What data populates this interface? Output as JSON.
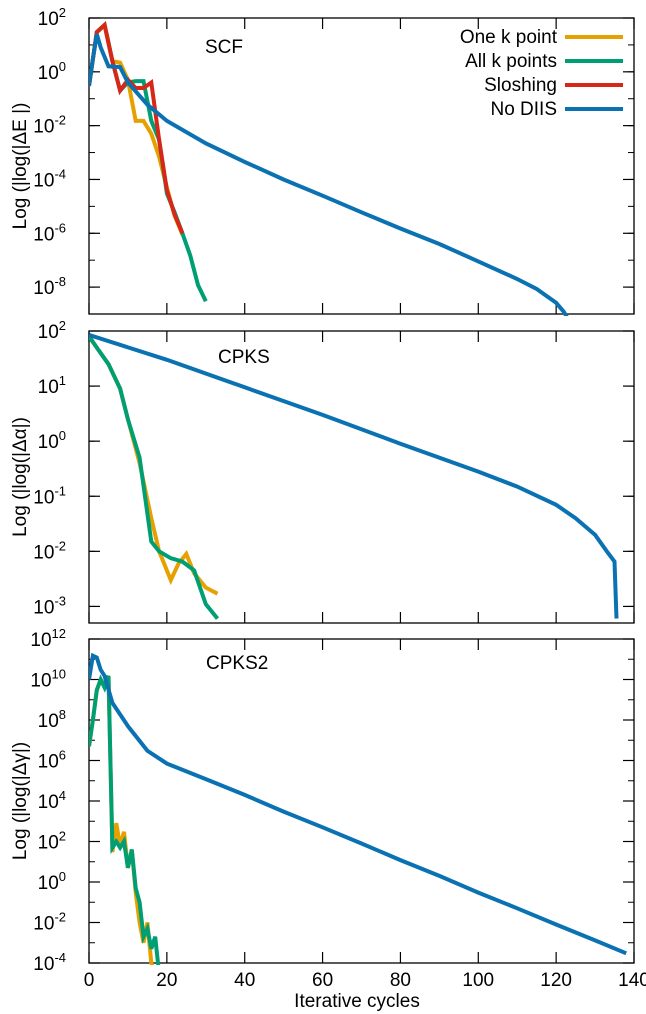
{
  "colors": {
    "one_k": "#e6a100",
    "all_k": "#009e73",
    "sloshing": "#d62718",
    "no_diis": "#0a72b2"
  },
  "legend": [
    {
      "label": "One k point",
      "key": "one_k"
    },
    {
      "label": "All k points",
      "key": "all_k"
    },
    {
      "label": "Sloshing",
      "key": "sloshing"
    },
    {
      "label": "No DIIS",
      "key": "no_diis"
    }
  ],
  "x_axis": {
    "label": "Iterative cycles",
    "ticks": [
      "0",
      "20",
      "40",
      "60",
      "80",
      "100",
      "120",
      "140"
    ]
  },
  "chart_data": [
    {
      "type": "line",
      "title": "SCF",
      "ylabel": "Log (|log(|ΔE |)",
      "yscale": "log",
      "ylim": [
        1e-09,
        100
      ],
      "xlim": [
        0,
        140
      ],
      "yticks": [
        {
          "base": "10",
          "exp": "2",
          "value": 100
        },
        {
          "base": "10",
          "exp": "0",
          "value": 1
        },
        {
          "base": "10",
          "exp": "-2",
          "value": 0.01
        },
        {
          "base": "10",
          "exp": "-4",
          "value": 0.0001
        },
        {
          "base": "10",
          "exp": "-6",
          "value": 1e-06
        },
        {
          "base": "10",
          "exp": "-8",
          "value": 1e-08
        }
      ],
      "series": [
        {
          "name": "One k point",
          "key": "one_k",
          "x": [
            0,
            2,
            4,
            6,
            8,
            10,
            12,
            14,
            16,
            18,
            20,
            22,
            24
          ],
          "y": [
            0.3,
            30,
            55,
            2.5,
            2.2,
            0.5,
            0.015,
            0.015,
            0.005,
            0.0007,
            5e-05,
            4.5e-06,
            9e-07
          ]
        },
        {
          "name": "All k points",
          "key": "all_k",
          "x": [
            0,
            2,
            4,
            6,
            8,
            10,
            12,
            14,
            16,
            18,
            20,
            22,
            24,
            26,
            28,
            30
          ],
          "y": [
            0.3,
            30,
            55,
            2.5,
            0.2,
            0.4,
            0.45,
            0.45,
            0.015,
            0.003,
            3e-05,
            6e-06,
            1e-06,
            1.5e-07,
            1.2e-08,
            3e-09
          ]
        },
        {
          "name": "Sloshing",
          "key": "sloshing",
          "x": [
            0,
            2,
            4,
            6,
            8,
            10,
            12,
            14,
            16,
            18,
            20,
            22,
            24
          ],
          "y": [
            0.3,
            30,
            55,
            2.5,
            0.2,
            0.5,
            0.25,
            0.25,
            0.4,
            0.003,
            4e-05,
            5e-06,
            1e-06
          ]
        },
        {
          "name": "No DIIS",
          "key": "no_diis",
          "x": [
            0,
            1,
            2,
            3,
            5,
            8,
            10,
            15,
            20,
            30,
            40,
            50,
            60,
            70,
            80,
            90,
            100,
            110,
            115,
            120,
            122,
            123.5
          ],
          "y": [
            0.3,
            3,
            25,
            8,
            1.6,
            1.5,
            0.4,
            0.06,
            0.015,
            0.0022,
            0.00045,
            0.0001,
            2.5e-05,
            6e-06,
            1.5e-06,
            4e-07,
            9e-08,
            2e-08,
            8.5e-09,
            2.6e-09,
            1.2e-09,
            5e-10
          ]
        }
      ]
    },
    {
      "type": "line",
      "title": "CPKS",
      "ylabel": "Log (|log(|Δα|)",
      "yscale": "log",
      "ylim": [
        0.0005,
        100
      ],
      "xlim": [
        0,
        140
      ],
      "yticks": [
        {
          "base": "10",
          "exp": "2",
          "value": 100
        },
        {
          "base": "10",
          "exp": "1",
          "value": 10
        },
        {
          "base": "10",
          "exp": "0",
          "value": 1
        },
        {
          "base": "10",
          "exp": "-1",
          "value": 0.1
        },
        {
          "base": "10",
          "exp": "-2",
          "value": 0.01
        },
        {
          "base": "10",
          "exp": "-3",
          "value": 0.001
        }
      ],
      "series": [
        {
          "name": "One k point",
          "key": "one_k",
          "x": [
            0,
            2,
            5,
            8,
            10,
            13,
            16,
            18,
            21,
            23,
            25,
            27,
            30,
            33
          ],
          "y": [
            80,
            50,
            25,
            9,
            2.5,
            0.4,
            0.04,
            0.01,
            0.003,
            0.006,
            0.009,
            0.004,
            0.0022,
            0.0017
          ]
        },
        {
          "name": "All k points",
          "key": "all_k",
          "x": [
            0,
            2,
            5,
            8,
            10,
            13,
            16,
            18,
            21,
            24,
            27,
            30,
            33
          ],
          "y": [
            80,
            50,
            25,
            9,
            2.5,
            0.5,
            0.015,
            0.01,
            0.0075,
            0.0065,
            0.0045,
            0.0011,
            0.0006
          ]
        },
        {
          "name": "No DIIS",
          "key": "no_diis",
          "x": [
            0,
            20,
            40,
            60,
            80,
            100,
            110,
            120,
            125,
            130,
            133,
            135,
            135.5
          ],
          "y": [
            85,
            30,
            9.5,
            3,
            0.9,
            0.28,
            0.15,
            0.07,
            0.04,
            0.02,
            0.01,
            0.0065,
            0.0006
          ]
        }
      ]
    },
    {
      "type": "line",
      "title": "CPKS2",
      "ylabel": "Log (|log(|Δγ|)",
      "yscale": "log",
      "ylim": [
        0.0001,
        1000000000000.0
      ],
      "xlim": [
        0,
        140
      ],
      "yticks": [
        {
          "base": "10",
          "exp": "12",
          "value": 1000000000000.0
        },
        {
          "base": "10",
          "exp": "10",
          "value": 10000000000.0
        },
        {
          "base": "10",
          "exp": "8",
          "value": 100000000.0
        },
        {
          "base": "10",
          "exp": "6",
          "value": 1000000.0
        },
        {
          "base": "10",
          "exp": "4",
          "value": 10000.0
        },
        {
          "base": "10",
          "exp": "2",
          "value": 100
        },
        {
          "base": "10",
          "exp": "0",
          "value": 1
        },
        {
          "base": "10",
          "exp": "-2",
          "value": 0.01
        },
        {
          "base": "10",
          "exp": "-4",
          "value": 0.0001
        }
      ],
      "series": [
        {
          "name": "One k point",
          "key": "one_k",
          "x": [
            0,
            1,
            2,
            3,
            4,
            5,
            6,
            7,
            8,
            9,
            10,
            11,
            12,
            13,
            14,
            15,
            16,
            17
          ],
          "y": [
            5000000.0,
            100000000.0,
            3000000000.0,
            10000000000.0,
            5000000000.0,
            15000000000.0,
            30,
            800,
            60,
            300,
            5,
            40,
            0.3,
            0.01,
            0.001,
            0.01,
            0.0001,
            3e-05
          ]
        },
        {
          "name": "All k points",
          "key": "all_k",
          "x": [
            0,
            1,
            2,
            3,
            4,
            5,
            6,
            7,
            8,
            9,
            10,
            11,
            12,
            13,
            14,
            15,
            16,
            17,
            18
          ],
          "y": [
            5000000.0,
            100000000.0,
            3000000000.0,
            10000000000.0,
            4000000000.0,
            15000000000.0,
            50,
            100,
            50,
            100,
            5,
            40,
            0.5,
            0.1,
            0.002,
            0.005,
            0.0005,
            0.002,
            3e-05
          ]
        },
        {
          "name": "No DIIS",
          "key": "no_diis",
          "x": [
            0,
            1,
            2,
            3,
            4,
            6,
            10,
            15,
            20,
            30,
            40,
            50,
            60,
            70,
            80,
            90,
            100,
            110,
            120,
            130,
            138
          ],
          "y": [
            10000000000.0,
            150000000000.0,
            120000000000.0,
            30000000000.0,
            15000000000.0,
            700000000.0,
            50000000.0,
            3000000.0,
            700000.0,
            120000.0,
            20000.0,
            3000,
            500,
            80,
            12,
            2,
            0.3,
            0.05,
            0.008,
            0.0013,
            0.0003
          ]
        }
      ]
    }
  ]
}
